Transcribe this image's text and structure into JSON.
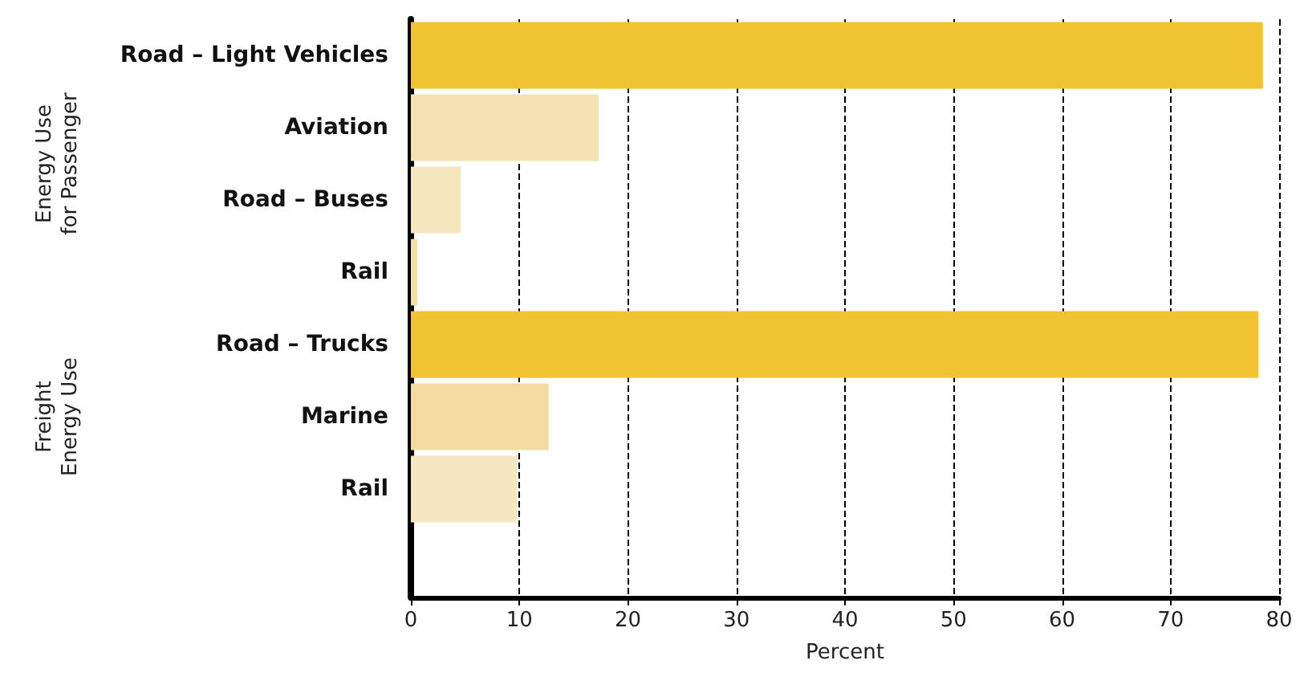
{
  "chart_data": {
    "type": "bar",
    "orientation": "horizontal",
    "categories": [
      "Road – Light Vehicles",
      "Aviation",
      "Road – Buses",
      "Rail",
      "Road – Trucks",
      "Marine",
      "Rail",
      null
    ],
    "values": [
      78.5,
      17.3,
      4.6,
      0.6,
      78.1,
      12.7,
      9.8,
      null
    ],
    "colors": [
      "#f1c232",
      "#f5e2b0",
      "#f6e6bd",
      "#f3dfa8",
      "#f1c232",
      "#f3dca2",
      "#f6e7c2",
      "#f6e7c2"
    ],
    "xlim": [
      0,
      80
    ],
    "xticks": [
      0,
      10,
      20,
      30,
      40,
      50,
      60,
      70,
      80
    ],
    "xlabel": "Percent",
    "grid": "x",
    "annotations": [
      "Energy Use\nfor Passenger",
      "Freight\nEnergy Use"
    ]
  }
}
